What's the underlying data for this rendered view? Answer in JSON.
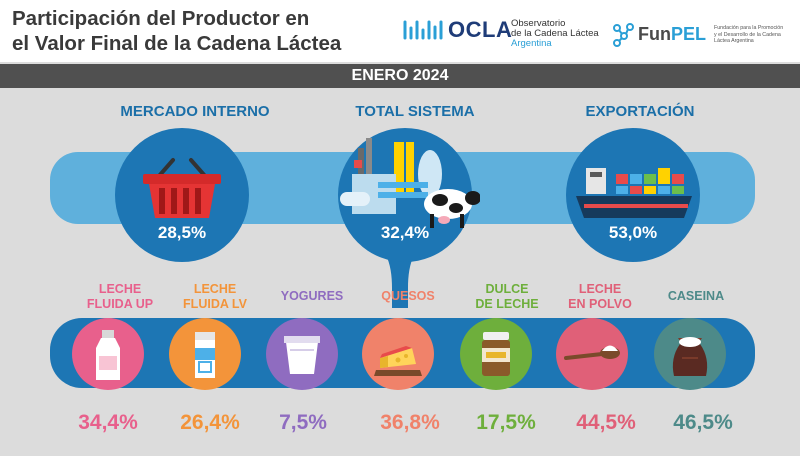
{
  "header": {
    "title_line1": "Participación del Productor en",
    "title_line2": "el Valor Final de la Cadena Láctea",
    "ocla": {
      "name": "OCLA",
      "sub1": "Observatorio",
      "sub2": "de la Cadena Láctea",
      "sub3": "Argentina"
    },
    "funpel": {
      "name_part1": "Fun",
      "name_part2": "PEL",
      "sub1": "Fundación para la Promoción",
      "sub2": "y el Desarrollo de la Cadena",
      "sub3": "Láctea Argentina"
    }
  },
  "period": "ENERO 2024",
  "markets": [
    {
      "label": "MERCADO INTERNO",
      "value": "28,5%",
      "icon": "shopping-basket-icon"
    },
    {
      "label": "TOTAL SISTEMA",
      "value": "32,4%",
      "icon": "dairy-farm-icon"
    },
    {
      "label": "EXPORTACIÓN",
      "value": "53,0%",
      "icon": "cargo-ship-icon"
    }
  ],
  "products": [
    {
      "label1": "LECHE",
      "label2": "FLUIDA UP",
      "value": "34,4%",
      "icon": "milk-bottle-icon",
      "color": "#e8608c"
    },
    {
      "label1": "LECHE",
      "label2": "FLUIDA LV",
      "value": "26,4%",
      "icon": "milk-carton-icon",
      "color": "#f3943a"
    },
    {
      "label1": "YOGURES",
      "label2": "",
      "value": "7,5%",
      "icon": "yogurt-cup-icon",
      "color": "#8f6cc0"
    },
    {
      "label1": "QUESOS",
      "label2": "",
      "value": "36,8%",
      "icon": "cheese-icon",
      "color": "#f0826a"
    },
    {
      "label1": "DULCE",
      "label2": "DE LECHE",
      "value": "17,5%",
      "icon": "dulce-de-leche-jar-icon",
      "color": "#6eaf3c"
    },
    {
      "label1": "LECHE",
      "label2": "EN POLVO",
      "value": "44,5%",
      "icon": "powder-spoon-icon",
      "color": "#e06078"
    },
    {
      "label1": "CASEINA",
      "label2": "",
      "value": "46,5%",
      "icon": "casein-sack-icon",
      "color": "#4d8a89"
    }
  ]
}
